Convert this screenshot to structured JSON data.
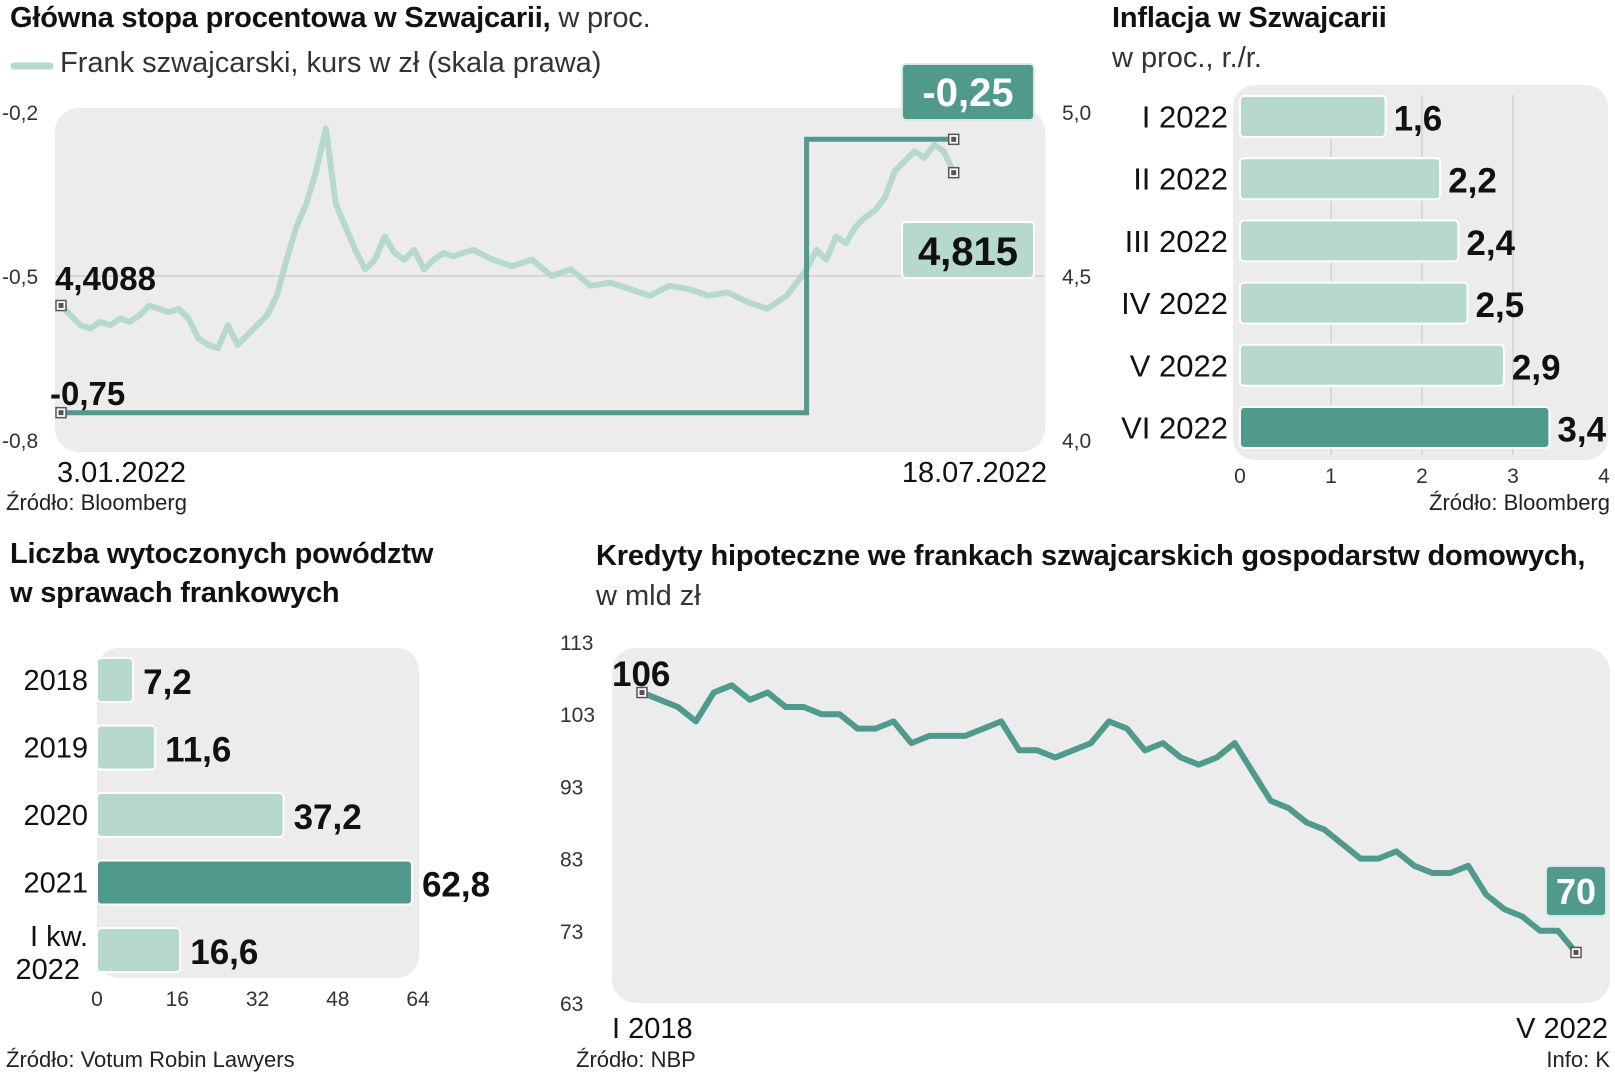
{
  "colors": {
    "dark_green": "#4f9a8d",
    "light_green": "#b6d8cf",
    "plot_bg": "#ececec",
    "text": "#111111"
  },
  "panel_rate": {
    "title": "Główna stopa procentowa w Szwajcarii,",
    "title_unit": "w proc.",
    "legend_label": "Frank szwajcarski, kurs w zł (skala prawa)",
    "source": "Źródło: Bloomberg"
  },
  "panel_inflation": {
    "title": "Inflacja w Szwajcarii",
    "subtitle": "w proc., r./r.",
    "source": "Źródło: Bloomberg"
  },
  "panel_lawsuits": {
    "title_line1": "Liczba wytoczonych powództw",
    "title_line2": "w sprawach frankowych",
    "source": "Źródło: Votum Robin Lawyers"
  },
  "panel_mortgages": {
    "title": "Kredyty hipoteczne we frankach szwajcarskich gospodarstw domowych,",
    "subtitle": "w mld zł",
    "source": "Źródło: NBP",
    "info": "Info: K"
  },
  "chart_data": [
    {
      "type": "line",
      "title": "Główna stopa procentowa w Szwajcarii, w proc.",
      "x_range": [
        "3.01.2022",
        "18.07.2022"
      ],
      "x_tick_labels": [
        "3.01.2022",
        "18.07.2022"
      ],
      "y_left_ticks": [
        "-0,2",
        "-0,5",
        "-0,8"
      ],
      "y_left_range": [
        -0.8,
        -0.2
      ],
      "y_right_ticks": [
        "5,0",
        "4,5",
        "4,0"
      ],
      "y_right_range": [
        4.0,
        5.0
      ],
      "series": [
        {
          "name": "",
          "axis": "left",
          "style": "step",
          "points": [
            [
              0,
              -0.75
            ],
            [
              0.76,
              -0.75
            ],
            [
              0.76,
              -0.25
            ],
            [
              0.91,
              -0.25
            ]
          ],
          "start_label": "-0,75",
          "end_label": "-0,25"
        },
        {
          "name": "Frank szwajcarski, kurs w zł (skala prawa)",
          "axis": "right",
          "style": "line",
          "x": [
            0,
            0.01,
            0.02,
            0.03,
            0.04,
            0.05,
            0.06,
            0.07,
            0.08,
            0.09,
            0.1,
            0.11,
            0.12,
            0.13,
            0.14,
            0.15,
            0.16,
            0.17,
            0.18,
            0.19,
            0.2,
            0.21,
            0.22,
            0.23,
            0.24,
            0.25,
            0.26,
            0.27,
            0.28,
            0.29,
            0.3,
            0.31,
            0.32,
            0.33,
            0.34,
            0.35,
            0.36,
            0.37,
            0.38,
            0.39,
            0.4,
            0.42,
            0.44,
            0.46,
            0.48,
            0.5,
            0.52,
            0.54,
            0.56,
            0.58,
            0.6,
            0.62,
            0.64,
            0.66,
            0.68,
            0.7,
            0.72,
            0.74,
            0.76,
            0.77,
            0.78,
            0.79,
            0.8,
            0.81,
            0.82,
            0.83,
            0.84,
            0.85,
            0.86,
            0.87,
            0.88,
            0.89,
            0.9,
            0.91
          ],
          "values": [
            4.41,
            4.38,
            4.35,
            4.34,
            4.36,
            4.35,
            4.37,
            4.36,
            4.38,
            4.41,
            4.4,
            4.39,
            4.4,
            4.37,
            4.31,
            4.29,
            4.28,
            4.35,
            4.29,
            4.32,
            4.35,
            4.38,
            4.44,
            4.55,
            4.65,
            4.72,
            4.82,
            4.95,
            4.72,
            4.65,
            4.58,
            4.52,
            4.55,
            4.62,
            4.57,
            4.55,
            4.58,
            4.52,
            4.55,
            4.57,
            4.56,
            4.58,
            4.55,
            4.53,
            4.55,
            4.5,
            4.52,
            4.47,
            4.48,
            4.46,
            4.44,
            4.47,
            4.46,
            4.44,
            4.45,
            4.42,
            4.4,
            4.44,
            4.52,
            4.58,
            4.55,
            4.62,
            4.6,
            4.65,
            4.68,
            4.7,
            4.74,
            4.82,
            4.85,
            4.88,
            4.86,
            4.9,
            4.88,
            4.815
          ],
          "start_label": "4,4088",
          "end_label": "4,815"
        }
      ]
    },
    {
      "type": "bar",
      "orientation": "horizontal",
      "title": "Inflacja w Szwajcarii",
      "subtitle": "w proc., r./r.",
      "categories": [
        "I 2022",
        "II 2022",
        "III 2022",
        "IV 2022",
        "V 2022",
        "VI 2022"
      ],
      "values": [
        1.6,
        2.2,
        2.4,
        2.5,
        2.9,
        3.4
      ],
      "value_labels": [
        "1,6",
        "2,2",
        "2,4",
        "2,5",
        "2,9",
        "3,4"
      ],
      "highlight_index": 5,
      "xlim": [
        0,
        4
      ],
      "x_ticks": [
        "0",
        "1",
        "2",
        "3",
        "4"
      ]
    },
    {
      "type": "bar",
      "orientation": "horizontal",
      "title": "Liczba wytoczonych powództw w sprawach frankowych",
      "categories": [
        "2018",
        "2019",
        "2020",
        "2021",
        "I kw. 2022"
      ],
      "values": [
        7.2,
        11.6,
        37.2,
        62.8,
        16.6
      ],
      "value_labels": [
        "7,2",
        "11,6",
        "37,2",
        "62,8",
        "16,6"
      ],
      "highlight_index": 3,
      "xlim": [
        0,
        64
      ],
      "x_ticks": [
        "0",
        "16",
        "32",
        "48",
        "64"
      ]
    },
    {
      "type": "line",
      "title": "Kredyty hipoteczne we frankach szwajcarskich gospodarstw domowych,",
      "subtitle": "w mld zł",
      "x_tick_labels": [
        "I 2018",
        "V 2022"
      ],
      "ylim": [
        63,
        113
      ],
      "y_ticks": [
        "113",
        "103",
        "93",
        "83",
        "73",
        "63"
      ],
      "series": [
        {
          "name": "",
          "values": [
            106,
            105,
            104,
            102,
            106,
            107,
            105,
            106,
            104,
            104,
            103,
            103,
            101,
            101,
            102,
            99,
            100,
            100,
            100,
            101,
            102,
            98,
            98,
            97,
            98,
            99,
            102,
            101,
            98,
            99,
            97,
            96,
            97,
            99,
            95,
            91,
            90,
            88,
            87,
            85,
            83,
            83,
            84,
            82,
            81,
            81,
            82,
            78,
            76,
            75,
            73,
            73,
            70
          ],
          "start_label": "106",
          "end_label": "70"
        }
      ]
    }
  ]
}
